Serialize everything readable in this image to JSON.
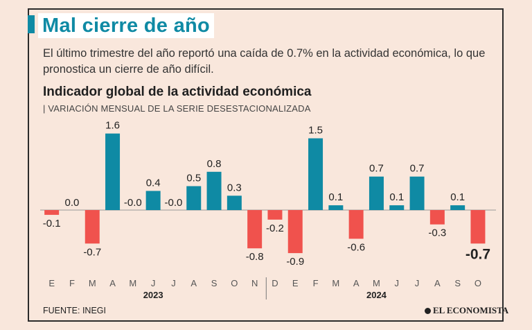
{
  "header": {
    "title": "Mal cierre de año",
    "subtitle": "El último trimestre del año reportó una caída de 0.7% en la actividad económica, lo que pronostica un cierre de año difícil."
  },
  "chart_data": {
    "type": "bar",
    "title": "Indicador global de la actividad económica",
    "subtitle": "| VARIACIÓN MENSUAL DE LA SERIE DESESTACIONALIZADA",
    "categories": [
      "E",
      "F",
      "M",
      "A",
      "M",
      "J",
      "J",
      "A",
      "S",
      "O",
      "N",
      "D",
      "E",
      "F",
      "M",
      "A",
      "M",
      "J",
      "J",
      "A",
      "S",
      "O"
    ],
    "values": [
      -0.1,
      0.0,
      -0.7,
      1.6,
      -0.0,
      0.4,
      -0.0,
      0.5,
      0.8,
      0.3,
      -0.8,
      -0.2,
      -0.9,
      1.5,
      0.1,
      -0.6,
      0.7,
      0.1,
      0.7,
      -0.3,
      0.1,
      -0.7
    ],
    "value_labels": [
      "-0.1",
      "0.0",
      "-0.7",
      "1.6",
      "-0.0",
      "0.4",
      "-0.0",
      "0.5",
      "0.8",
      "0.3",
      "-0.8",
      "-0.2",
      "-0.9",
      "1.5",
      "0.1",
      "-0.6",
      "0.7",
      "0.1",
      "0.7",
      "-0.3",
      "0.1",
      "-0.7"
    ],
    "years": [
      {
        "label": "2023",
        "start": 0,
        "end": 10
      },
      {
        "label": "2024",
        "start": 11,
        "end": 21
      }
    ],
    "highlight_last": true,
    "colors": {
      "positive": "#0f8aa4",
      "negative": "#f0524d",
      "axis": "#999999"
    }
  },
  "footer": {
    "source": "FUENTE: INEGI",
    "logo": "EL ECONOMISTA"
  }
}
